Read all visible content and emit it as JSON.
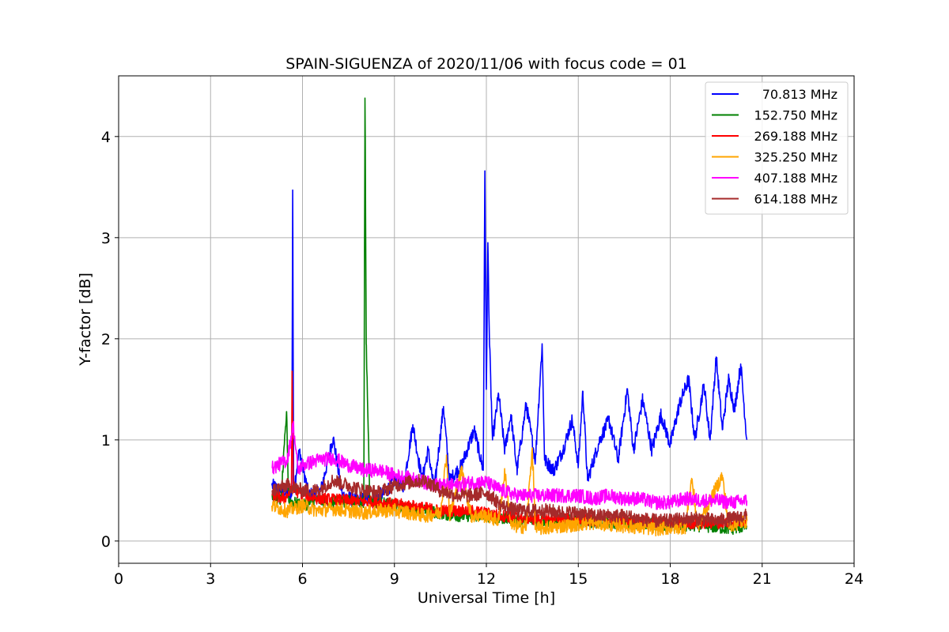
{
  "chart_data": {
    "type": "line",
    "title": "SPAIN-SIGUENZA of 2020/11/06 with focus code = 01",
    "xlabel": "Universal Time [h]",
    "ylabel": "Y-factor [dB]",
    "xlim": [
      0,
      24
    ],
    "ylim": [
      -0.22,
      4.6
    ],
    "xticks": [
      0,
      3,
      6,
      9,
      12,
      15,
      18,
      21,
      24
    ],
    "xtick_labels": [
      "0",
      "3",
      "6",
      "9",
      "12",
      "15",
      "18",
      "21",
      "24"
    ],
    "yticks": [
      0,
      1,
      2,
      3,
      4
    ],
    "ytick_labels": [
      "0",
      "1",
      "2",
      "3",
      "4"
    ],
    "grid": true,
    "legend_position": "top-right",
    "x_range_of_data": [
      5.0,
      20.5
    ],
    "series": [
      {
        "name": " 70.813 MHz",
        "color": "#0000ff",
        "points": [
          [
            5.0,
            0.55
          ],
          [
            5.3,
            0.5
          ],
          [
            5.65,
            0.45
          ],
          [
            5.68,
            3.47
          ],
          [
            5.71,
            0.5
          ],
          [
            5.9,
            0.9
          ],
          [
            6.2,
            0.45
          ],
          [
            6.6,
            0.5
          ],
          [
            7.0,
            1.02
          ],
          [
            7.3,
            0.45
          ],
          [
            7.8,
            0.4
          ],
          [
            8.3,
            0.42
          ],
          [
            8.7,
            0.48
          ],
          [
            9.0,
            0.6
          ],
          [
            9.3,
            0.55
          ],
          [
            9.6,
            1.15
          ],
          [
            9.9,
            0.6
          ],
          [
            10.1,
            0.9
          ],
          [
            10.3,
            0.5
          ],
          [
            10.6,
            1.33
          ],
          [
            10.8,
            0.6
          ],
          [
            11.2,
            0.75
          ],
          [
            11.6,
            1.1
          ],
          [
            11.9,
            0.7
          ],
          [
            11.95,
            3.66
          ],
          [
            12.0,
            1.5
          ],
          [
            12.05,
            2.95
          ],
          [
            12.1,
            1.98
          ],
          [
            12.2,
            1.0
          ],
          [
            12.4,
            1.45
          ],
          [
            12.6,
            0.9
          ],
          [
            12.8,
            1.25
          ],
          [
            13.0,
            0.7
          ],
          [
            13.3,
            1.35
          ],
          [
            13.6,
            0.8
          ],
          [
            13.82,
            1.95
          ],
          [
            13.9,
            0.8
          ],
          [
            14.2,
            0.7
          ],
          [
            14.5,
            0.9
          ],
          [
            14.8,
            1.2
          ],
          [
            15.0,
            0.75
          ],
          [
            15.15,
            1.48
          ],
          [
            15.3,
            0.6
          ],
          [
            15.7,
            1.0
          ],
          [
            16.0,
            1.2
          ],
          [
            16.3,
            0.8
          ],
          [
            16.6,
            1.5
          ],
          [
            16.8,
            0.9
          ],
          [
            17.1,
            1.4
          ],
          [
            17.4,
            0.9
          ],
          [
            17.7,
            1.25
          ],
          [
            18.0,
            0.95
          ],
          [
            18.3,
            1.35
          ],
          [
            18.6,
            1.6
          ],
          [
            18.8,
            1.0
          ],
          [
            19.1,
            1.55
          ],
          [
            19.3,
            1.0
          ],
          [
            19.5,
            1.82
          ],
          [
            19.7,
            1.1
          ],
          [
            19.9,
            1.6
          ],
          [
            20.1,
            1.3
          ],
          [
            20.3,
            1.75
          ],
          [
            20.5,
            1.0
          ]
        ]
      },
      {
        "name": "152.750 MHz",
        "color": "#008000",
        "points": [
          [
            5.0,
            0.45
          ],
          [
            5.3,
            0.4
          ],
          [
            5.48,
            1.28
          ],
          [
            5.55,
            0.4
          ],
          [
            6.0,
            0.35
          ],
          [
            6.5,
            0.4
          ],
          [
            7.0,
            0.38
          ],
          [
            7.5,
            0.4
          ],
          [
            8.0,
            0.38
          ],
          [
            8.04,
            4.38
          ],
          [
            8.08,
            1.95
          ],
          [
            8.2,
            0.4
          ],
          [
            9.0,
            0.35
          ],
          [
            10.0,
            0.3
          ],
          [
            11.0,
            0.25
          ],
          [
            12.0,
            0.25
          ],
          [
            13.0,
            0.2
          ],
          [
            14.0,
            0.2
          ],
          [
            15.0,
            0.2
          ],
          [
            16.0,
            0.18
          ],
          [
            17.0,
            0.18
          ],
          [
            18.0,
            0.15
          ],
          [
            19.0,
            0.15
          ],
          [
            20.0,
            0.12
          ],
          [
            20.5,
            0.15
          ]
        ]
      },
      {
        "name": "269.188 MHz",
        "color": "#ff0000",
        "points": [
          [
            5.0,
            0.45
          ],
          [
            5.4,
            0.42
          ],
          [
            5.64,
            0.5
          ],
          [
            5.66,
            1.68
          ],
          [
            5.7,
            0.5
          ],
          [
            6.5,
            0.42
          ],
          [
            7.5,
            0.4
          ],
          [
            8.5,
            0.38
          ],
          [
            9.5,
            0.35
          ],
          [
            10.5,
            0.3
          ],
          [
            11.5,
            0.3
          ],
          [
            12.5,
            0.25
          ],
          [
            13.5,
            0.22
          ],
          [
            14.5,
            0.22
          ],
          [
            15.5,
            0.2
          ],
          [
            16.5,
            0.2
          ],
          [
            17.5,
            0.18
          ],
          [
            18.5,
            0.18
          ],
          [
            19.5,
            0.18
          ],
          [
            20.5,
            0.2
          ]
        ]
      },
      {
        "name": "325.250 MHz",
        "color": "#ffa500",
        "points": [
          [
            5.0,
            0.35
          ],
          [
            5.5,
            0.3
          ],
          [
            6.0,
            0.35
          ],
          [
            6.5,
            0.3
          ],
          [
            7.0,
            0.32
          ],
          [
            7.5,
            0.3
          ],
          [
            8.0,
            0.28
          ],
          [
            8.5,
            0.3
          ],
          [
            9.0,
            0.3
          ],
          [
            9.5,
            0.28
          ],
          [
            10.0,
            0.25
          ],
          [
            10.5,
            0.28
          ],
          [
            10.7,
            0.85
          ],
          [
            10.8,
            0.25
          ],
          [
            11.2,
            0.7
          ],
          [
            11.5,
            0.25
          ],
          [
            12.0,
            0.25
          ],
          [
            12.4,
            0.2
          ],
          [
            12.6,
            0.68
          ],
          [
            12.8,
            0.15
          ],
          [
            13.3,
            0.14
          ],
          [
            13.5,
            0.92
          ],
          [
            13.6,
            0.12
          ],
          [
            14.5,
            0.15
          ],
          [
            15.5,
            0.18
          ],
          [
            16.5,
            0.15
          ],
          [
            17.5,
            0.12
          ],
          [
            18.5,
            0.14
          ],
          [
            18.7,
            0.62
          ],
          [
            18.9,
            0.15
          ],
          [
            19.7,
            0.65
          ],
          [
            19.9,
            0.15
          ],
          [
            20.5,
            0.2
          ]
        ]
      },
      {
        "name": "407.188 MHz",
        "color": "#ff00ff",
        "points": [
          [
            5.0,
            0.72
          ],
          [
            5.5,
            0.8
          ],
          [
            5.7,
            1.15
          ],
          [
            5.85,
            0.7
          ],
          [
            6.0,
            0.75
          ],
          [
            6.5,
            0.8
          ],
          [
            7.0,
            0.82
          ],
          [
            7.5,
            0.75
          ],
          [
            8.0,
            0.7
          ],
          [
            8.5,
            0.7
          ],
          [
            9.0,
            0.65
          ],
          [
            9.5,
            0.62
          ],
          [
            10.0,
            0.58
          ],
          [
            10.5,
            0.55
          ],
          [
            11.0,
            0.55
          ],
          [
            11.5,
            0.58
          ],
          [
            12.0,
            0.58
          ],
          [
            12.5,
            0.5
          ],
          [
            13.0,
            0.45
          ],
          [
            13.5,
            0.45
          ],
          [
            14.0,
            0.45
          ],
          [
            14.5,
            0.45
          ],
          [
            15.0,
            0.45
          ],
          [
            15.5,
            0.42
          ],
          [
            16.0,
            0.45
          ],
          [
            16.5,
            0.42
          ],
          [
            17.0,
            0.42
          ],
          [
            17.5,
            0.38
          ],
          [
            18.0,
            0.38
          ],
          [
            18.5,
            0.42
          ],
          [
            19.0,
            0.4
          ],
          [
            19.5,
            0.4
          ],
          [
            20.0,
            0.38
          ],
          [
            20.5,
            0.4
          ]
        ]
      },
      {
        "name": "614.188 MHz",
        "color": "#a52a2a",
        "points": [
          [
            5.0,
            0.5
          ],
          [
            5.5,
            0.55
          ],
          [
            6.0,
            0.5
          ],
          [
            6.5,
            0.5
          ],
          [
            7.0,
            0.6
          ],
          [
            7.5,
            0.55
          ],
          [
            8.0,
            0.5
          ],
          [
            8.5,
            0.48
          ],
          [
            9.0,
            0.55
          ],
          [
            9.5,
            0.58
          ],
          [
            10.0,
            0.6
          ],
          [
            10.5,
            0.5
          ],
          [
            11.0,
            0.45
          ],
          [
            11.5,
            0.45
          ],
          [
            12.0,
            0.48
          ],
          [
            12.5,
            0.35
          ],
          [
            13.0,
            0.3
          ],
          [
            13.5,
            0.3
          ],
          [
            14.0,
            0.3
          ],
          [
            14.5,
            0.28
          ],
          [
            15.0,
            0.28
          ],
          [
            15.5,
            0.25
          ],
          [
            16.0,
            0.25
          ],
          [
            16.5,
            0.25
          ],
          [
            17.0,
            0.22
          ],
          [
            17.5,
            0.2
          ],
          [
            18.0,
            0.2
          ],
          [
            18.5,
            0.22
          ],
          [
            19.0,
            0.22
          ],
          [
            19.5,
            0.2
          ],
          [
            20.0,
            0.22
          ],
          [
            20.5,
            0.25
          ]
        ]
      }
    ]
  }
}
